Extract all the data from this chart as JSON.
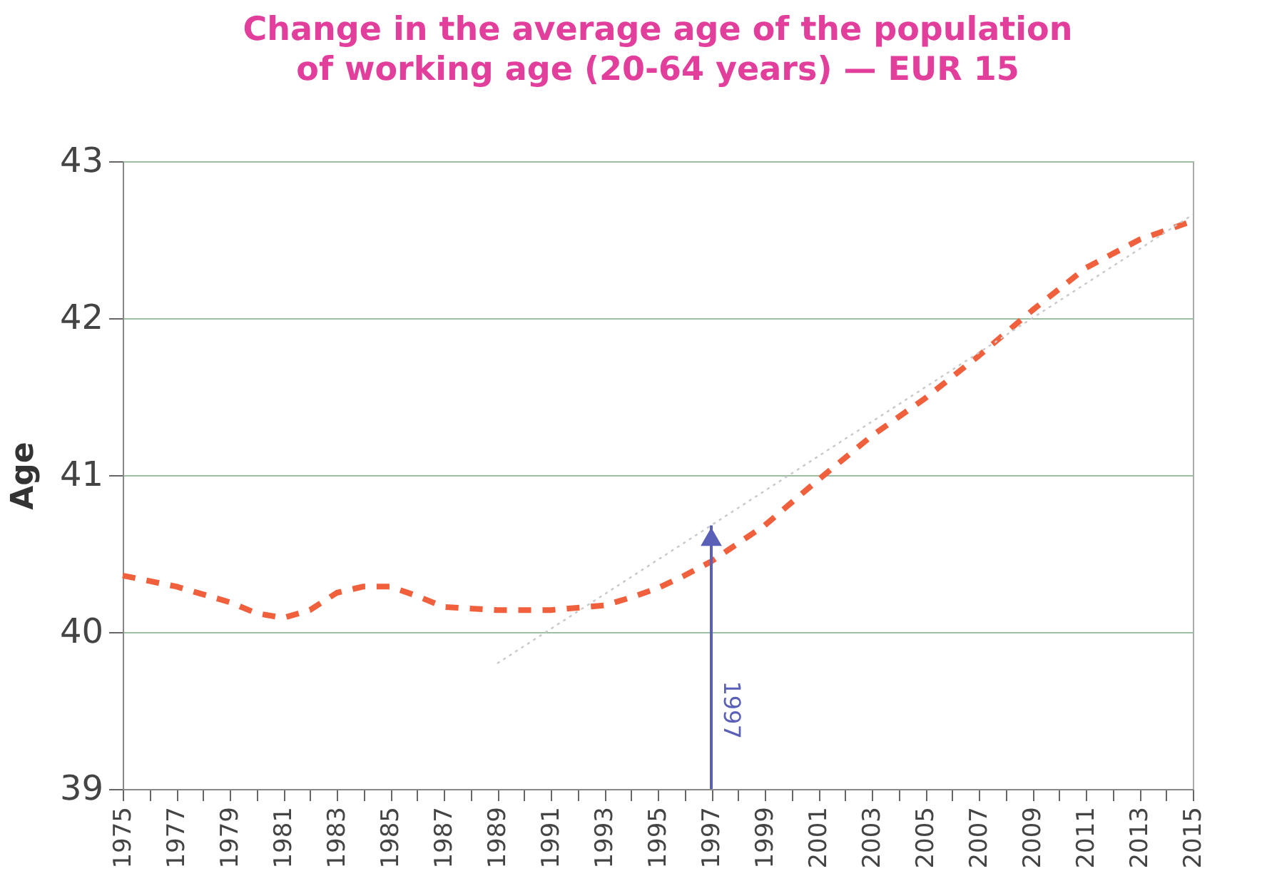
{
  "chart_data": {
    "type": "line",
    "title": [
      "Change in the average age of the population",
      "of working age (20-64 years) — EUR 15"
    ],
    "ylabel": "Age",
    "x": [
      1975,
      1977,
      1979,
      1980,
      1981,
      1982,
      1983,
      1984,
      1985,
      1986,
      1987,
      1989,
      1991,
      1993,
      1994,
      1995,
      1996,
      1997,
      1999,
      2001,
      2003,
      2005,
      2007,
      2009,
      2011,
      2013,
      2015
    ],
    "series": [
      {
        "color": "#f0603c",
        "line_style": "dashed",
        "values": [
          40.36,
          40.29,
          40.19,
          40.12,
          40.09,
          40.14,
          40.25,
          40.29,
          40.29,
          40.23,
          40.16,
          40.14,
          40.14,
          40.17,
          40.22,
          40.28,
          40.36,
          40.45,
          40.68,
          40.97,
          41.25,
          41.49,
          41.76,
          42.05,
          42.32,
          42.5,
          42.62
        ]
      },
      {
        "color": "#c8c8c8",
        "line_style": "dotted",
        "x": [
          1989,
          2015
        ],
        "values": [
          39.8,
          42.66
        ]
      }
    ],
    "ref_lines": [
      {
        "axis": "x",
        "value": 1997,
        "label": "1997",
        "color": "#5a5fb8"
      }
    ],
    "xlim": [
      1975,
      2015
    ],
    "xticks": [
      1975,
      {
        "value": 1976,
        "label": null
      },
      1977,
      {
        "value": 1978,
        "label": null
      },
      1979,
      {
        "value": 1980,
        "label": null
      },
      1981,
      {
        "value": 1982,
        "label": null
      },
      1983,
      {
        "value": 1984,
        "label": null
      },
      1985,
      {
        "value": 1986,
        "label": null
      },
      1987,
      {
        "value": 1988,
        "label": null
      },
      1989,
      {
        "value": 1990,
        "label": null
      },
      1991,
      {
        "value": 1992,
        "label": null
      },
      1993,
      {
        "value": 1994,
        "label": null
      },
      1995,
      {
        "value": 1996,
        "label": null
      },
      1997,
      {
        "value": 1998,
        "label": null
      },
      1999,
      {
        "value": 2000,
        "label": null
      },
      2001,
      {
        "value": 2002,
        "label": null
      },
      2003,
      {
        "value": 2004,
        "label": null
      },
      2005,
      {
        "value": 2006,
        "label": null
      },
      2007,
      {
        "value": 2008,
        "label": null
      },
      2009,
      {
        "value": 2010,
        "label": null
      },
      2011,
      {
        "value": 2012,
        "label": null
      },
      2013,
      {
        "value": 2014,
        "label": null
      },
      2015
    ],
    "ylim": [
      39,
      43
    ],
    "yticks": [
      39,
      40,
      41,
      42,
      43
    ],
    "grid": "y"
  }
}
